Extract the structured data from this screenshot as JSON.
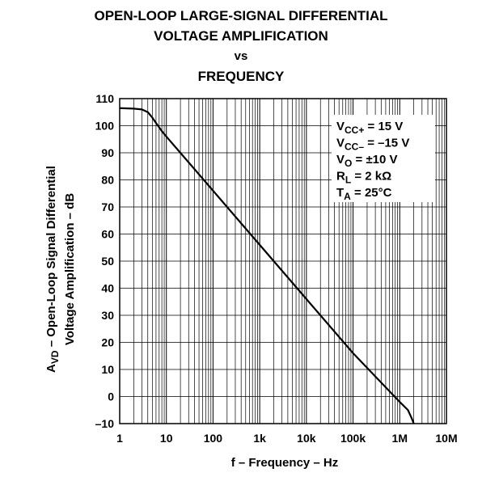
{
  "title": {
    "line1": "OPEN-LOOP LARGE-SIGNAL DIFFERENTIAL",
    "line2": "VOLTAGE AMPLIFICATION",
    "line3": "vs",
    "line4": "FREQUENCY"
  },
  "chart_data": {
    "type": "line",
    "title": "OPEN-LOOP LARGE-SIGNAL DIFFERENTIAL VOLTAGE AMPLIFICATION vs FREQUENCY",
    "xlabel": "f – Frequency – Hz",
    "ylabel": {
      "symbol": "A",
      "subscript": "VD",
      "line1_text": " – Open-Loop Signal Differential",
      "line2_text": "Voltage Amplification – dB"
    },
    "x_scale": "log",
    "xlim": [
      1,
      10000000
    ],
    "ylim": [
      -10,
      110
    ],
    "grid": true,
    "x_ticks": [
      {
        "value": 1,
        "label": "1"
      },
      {
        "value": 10,
        "label": "10"
      },
      {
        "value": 100,
        "label": "100"
      },
      {
        "value": 1000,
        "label": "1k"
      },
      {
        "value": 10000,
        "label": "10k"
      },
      {
        "value": 100000,
        "label": "100k"
      },
      {
        "value": 1000000,
        "label": "1M"
      },
      {
        "value": 10000000,
        "label": "10M"
      }
    ],
    "y_ticks": [
      {
        "value": 110,
        "label": "110"
      },
      {
        "value": 100,
        "label": "100"
      },
      {
        "value": 90,
        "label": "90"
      },
      {
        "value": 80,
        "label": "80"
      },
      {
        "value": 70,
        "label": "70"
      },
      {
        "value": 60,
        "label": "60"
      },
      {
        "value": 50,
        "label": "50"
      },
      {
        "value": 40,
        "label": "40"
      },
      {
        "value": 30,
        "label": "30"
      },
      {
        "value": 20,
        "label": "20"
      },
      {
        "value": 10,
        "label": "10"
      },
      {
        "value": 0,
        "label": "0"
      },
      {
        "value": -10,
        "label": "–10"
      }
    ],
    "series": [
      {
        "points": [
          {
            "x": 1,
            "y": 106.5
          },
          {
            "x": 2,
            "y": 106.3
          },
          {
            "x": 3,
            "y": 106
          },
          {
            "x": 4,
            "y": 105
          },
          {
            "x": 5,
            "y": 103
          },
          {
            "x": 6,
            "y": 101
          },
          {
            "x": 8,
            "y": 98
          },
          {
            "x": 10,
            "y": 96
          },
          {
            "x": 100,
            "y": 76
          },
          {
            "x": 1000,
            "y": 56
          },
          {
            "x": 10000,
            "y": 36
          },
          {
            "x": 100000,
            "y": 16
          },
          {
            "x": 1000000,
            "y": -2
          },
          {
            "x": 1500000,
            "y": -5
          },
          {
            "x": 1800000,
            "y": -8
          },
          {
            "x": 2000000,
            "y": -10
          }
        ]
      }
    ],
    "conditions": [
      {
        "main": "V",
        "sub": "CC+",
        "rest": " = 15 V"
      },
      {
        "main": "V",
        "sub": "CC–",
        "rest": " = –15 V"
      },
      {
        "main": "V",
        "sub": "O",
        "rest": " = ±10 V"
      },
      {
        "main": "R",
        "sub": "L",
        "rest": " = 2 kΩ"
      },
      {
        "main": "T",
        "sub": "A",
        "rest": " = 25°C"
      }
    ],
    "colors": {
      "line": "#000000",
      "grid": "#000000",
      "background": "#ffffff"
    }
  }
}
